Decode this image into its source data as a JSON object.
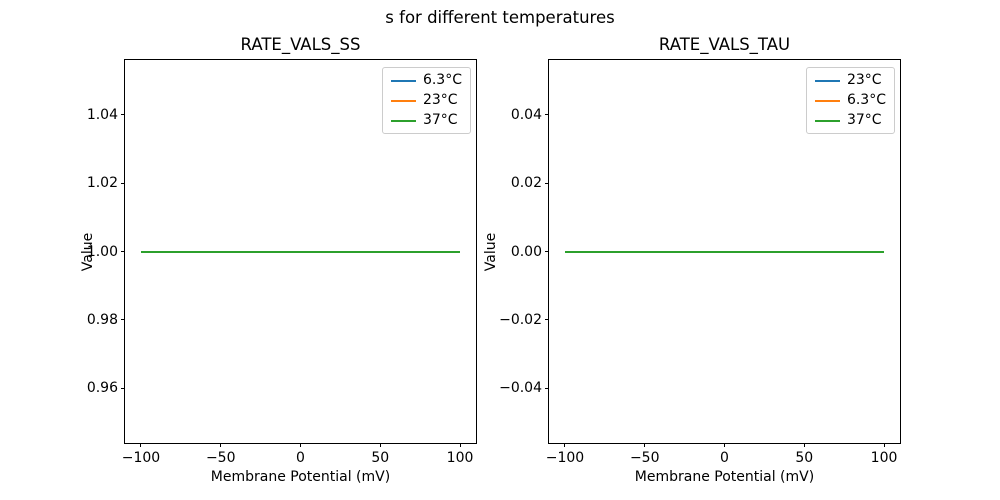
{
  "figure": {
    "suptitle": "s for different temperatures",
    "background": "#ffffff"
  },
  "colors": {
    "blue": "#1f77b4",
    "orange": "#ff7f0e",
    "green": "#2ca02c",
    "axis": "#000000",
    "legend_border": "#cccccc"
  },
  "chart_data": [
    {
      "type": "line",
      "title": "RATE_VALS_SS",
      "xlabel": "Membrane Potential (mV)",
      "ylabel": "Value",
      "xlim": [
        -110,
        110
      ],
      "ylim": [
        0.944,
        1.056
      ],
      "grid": false,
      "xticks": [
        {
          "value": -100,
          "label": "−100"
        },
        {
          "value": -50,
          "label": "−50"
        },
        {
          "value": 0,
          "label": "0"
        },
        {
          "value": 50,
          "label": "50"
        },
        {
          "value": 100,
          "label": "100"
        }
      ],
      "yticks": [
        {
          "value": 1.04,
          "label": "1.04"
        },
        {
          "value": 1.02,
          "label": "1.02"
        },
        {
          "value": 1.0,
          "label": "1.00"
        },
        {
          "value": 0.98,
          "label": "0.98"
        },
        {
          "value": 0.96,
          "label": "0.96"
        }
      ],
      "legend": {
        "position": "upper right",
        "entries": [
          {
            "label": "6.3°C",
            "color": "#1f77b4"
          },
          {
            "label": "23°C",
            "color": "#ff7f0e"
          },
          {
            "label": "37°C",
            "color": "#2ca02c"
          }
        ]
      },
      "series": [
        {
          "name": "6.3°C",
          "color": "#1f77b4",
          "x": [
            -100,
            100
          ],
          "y": [
            1.0,
            1.0
          ]
        },
        {
          "name": "23°C",
          "color": "#ff7f0e",
          "x": [
            -100,
            100
          ],
          "y": [
            1.0,
            1.0
          ]
        },
        {
          "name": "37°C",
          "color": "#2ca02c",
          "x": [
            -100,
            100
          ],
          "y": [
            1.0,
            1.0
          ]
        }
      ]
    },
    {
      "type": "line",
      "title": "RATE_VALS_TAU",
      "xlabel": "Membrane Potential (mV)",
      "ylabel": "Value",
      "xlim": [
        -110,
        110
      ],
      "ylim": [
        -0.056,
        0.056
      ],
      "grid": false,
      "xticks": [
        {
          "value": -100,
          "label": "−100"
        },
        {
          "value": -50,
          "label": "−50"
        },
        {
          "value": 0,
          "label": "0"
        },
        {
          "value": 50,
          "label": "50"
        },
        {
          "value": 100,
          "label": "100"
        }
      ],
      "yticks": [
        {
          "value": 0.04,
          "label": "0.04"
        },
        {
          "value": 0.02,
          "label": "0.02"
        },
        {
          "value": 0.0,
          "label": "0.00"
        },
        {
          "value": -0.02,
          "label": "−0.02"
        },
        {
          "value": -0.04,
          "label": "−0.04"
        }
      ],
      "legend": {
        "position": "upper right",
        "entries": [
          {
            "label": "23°C",
            "color": "#1f77b4"
          },
          {
            "label": "6.3°C",
            "color": "#ff7f0e"
          },
          {
            "label": "37°C",
            "color": "#2ca02c"
          }
        ]
      },
      "series": [
        {
          "name": "23°C",
          "color": "#1f77b4",
          "x": [
            -100,
            100
          ],
          "y": [
            0.0,
            0.0
          ]
        },
        {
          "name": "6.3°C",
          "color": "#ff7f0e",
          "x": [
            -100,
            100
          ],
          "y": [
            0.0,
            0.0
          ]
        },
        {
          "name": "37°C",
          "color": "#2ca02c",
          "x": [
            -100,
            100
          ],
          "y": [
            0.0,
            0.0
          ]
        }
      ]
    }
  ]
}
